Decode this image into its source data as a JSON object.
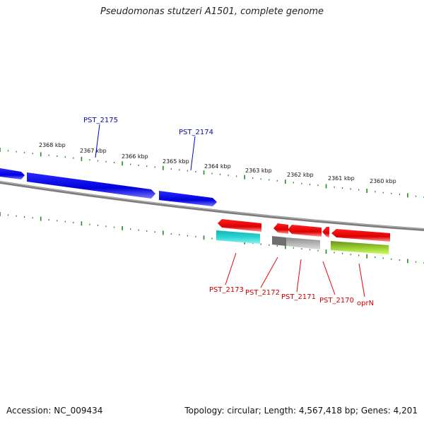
{
  "header": {
    "title": "Pseudomonas stutzeri A1501, complete genome"
  },
  "footer": {
    "accession": "Accession: NC_009434",
    "summary": "Topology: circular; Length: 4,567,418 bp; Genes: 4,201"
  },
  "scale": {
    "labels": [
      "2368 kbp",
      "2367 kbp",
      "2366 kbp",
      "2365 kbp",
      "2364 kbp",
      "2363 kbp",
      "2362 kbp",
      "2361 kbp",
      "2360 kbp"
    ]
  },
  "genes": {
    "forward": [
      "PST_2175",
      "PST_2174"
    ],
    "reverse": [
      "PST_2173",
      "PST_2172",
      "PST_2171",
      "PST_2170",
      "oprN"
    ]
  },
  "colors": {
    "forward_gene": "#0000ee",
    "reverse_gene": "#ee0000",
    "backbone": "#808080",
    "ticks": "#228b22",
    "cyan_feature": "#20c8c8",
    "gray_feature": "#a0a0a0",
    "green_feature": "#9acd32"
  }
}
